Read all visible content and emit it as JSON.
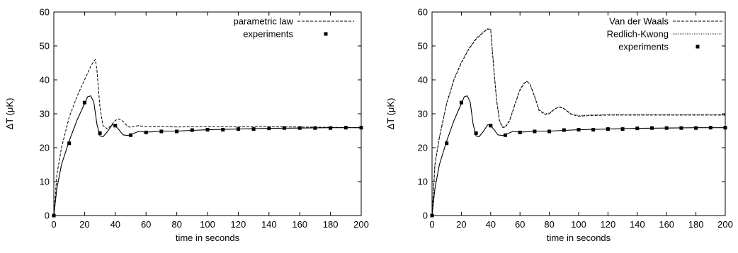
{
  "chart_data": [
    {
      "type": "line",
      "title": "",
      "xlabel": "time in seconds",
      "ylabel": "ΔT  (μK)",
      "xlim": [
        0,
        200
      ],
      "ylim": [
        0,
        60
      ],
      "xticks": [
        "0",
        "20",
        "40",
        "60",
        "80",
        "100",
        "120",
        "140",
        "160",
        "180",
        "200"
      ],
      "yticks": [
        "0",
        "10",
        "20",
        "30",
        "40",
        "50",
        "60"
      ],
      "legend_position": "top-right",
      "series": [
        {
          "name": "",
          "style": "solid",
          "x": [
            0,
            2,
            5,
            10,
            15,
            20,
            22,
            24,
            26,
            28,
            30,
            32,
            35,
            38,
            40,
            42,
            45,
            48,
            50,
            55,
            60,
            65,
            70,
            80,
            90,
            100,
            120,
            140,
            160,
            180,
            200
          ],
          "y": [
            0,
            8,
            15,
            22,
            28,
            33,
            35,
            35.3,
            33.5,
            27,
            23.5,
            23.2,
            24.8,
            26.8,
            26.5,
            25.5,
            23.8,
            23.6,
            23.8,
            24.8,
            24.6,
            24.7,
            24.9,
            24.9,
            25.1,
            25.3,
            25.5,
            25.7,
            25.8,
            25.9,
            25.9
          ]
        },
        {
          "name": "parametric law",
          "style": "dashed",
          "x": [
            0,
            2,
            5,
            10,
            15,
            20,
            24,
            26,
            27,
            28,
            30,
            32,
            35,
            38,
            40,
            42,
            45,
            48,
            50,
            55,
            60,
            70,
            80,
            100,
            120,
            140,
            160,
            180,
            200
          ],
          "y": [
            0,
            12,
            20,
            29,
            35,
            40,
            44,
            45.5,
            46,
            43,
            32,
            26.5,
            25.5,
            27,
            28,
            28.5,
            27.8,
            26.3,
            26,
            26.5,
            26.2,
            26.3,
            26.1,
            26.2,
            26.2,
            26.2,
            26.1,
            26,
            25.9
          ]
        },
        {
          "name": "experiments",
          "style": "points",
          "x": [
            0,
            10,
            20,
            30,
            40,
            50,
            60,
            70,
            80,
            90,
            100,
            110,
            120,
            130,
            140,
            150,
            160,
            170,
            180,
            190,
            200
          ],
          "y": [
            0,
            21.3,
            33.3,
            24.3,
            26.5,
            23.7,
            24.5,
            24.8,
            24.8,
            25.2,
            25.3,
            25.3,
            25.5,
            25.5,
            25.7,
            25.8,
            25.8,
            25.8,
            25.8,
            25.9,
            25.9
          ]
        }
      ]
    },
    {
      "type": "line",
      "title": "",
      "xlabel": "time in seconds",
      "ylabel": "ΔT  (μK)",
      "xlim": [
        0,
        200
      ],
      "ylim": [
        0,
        60
      ],
      "xticks": [
        "0",
        "20",
        "40",
        "60",
        "80",
        "100",
        "120",
        "140",
        "160",
        "180",
        "200"
      ],
      "yticks": [
        "0",
        "10",
        "20",
        "30",
        "40",
        "50",
        "60"
      ],
      "legend_position": "top-right",
      "series": [
        {
          "name": "",
          "style": "solid",
          "x": [
            0,
            2,
            5,
            10,
            15,
            20,
            22,
            24,
            26,
            28,
            30,
            32,
            35,
            38,
            40,
            42,
            45,
            48,
            50,
            55,
            60,
            65,
            70,
            80,
            90,
            100,
            120,
            140,
            160,
            180,
            200
          ],
          "y": [
            0,
            8,
            15,
            22,
            28,
            33,
            35,
            35.3,
            33.5,
            27,
            23.5,
            23.2,
            24.8,
            26.8,
            26.5,
            25.5,
            23.8,
            23.6,
            23.8,
            24.8,
            24.6,
            24.7,
            24.9,
            24.9,
            25.1,
            25.3,
            25.5,
            25.7,
            25.8,
            25.9,
            25.9
          ]
        },
        {
          "name": "Van der Waals",
          "style": "dashed",
          "x": [
            0,
            2,
            5,
            10,
            15,
            20,
            25,
            30,
            35,
            38,
            40,
            42,
            44,
            46,
            48,
            50,
            53,
            56,
            60,
            63,
            65,
            67,
            70,
            73,
            77,
            80,
            84,
            87,
            90,
            95,
            100,
            110,
            120,
            140,
            160,
            180,
            200
          ],
          "y": [
            0,
            15,
            23,
            33,
            40,
            45,
            49,
            52,
            54,
            55,
            54.8,
            44,
            34,
            28,
            26,
            26,
            28,
            32,
            37,
            39,
            39.5,
            38.5,
            35,
            31,
            29.8,
            30,
            31.5,
            32,
            31.5,
            29.8,
            29.3,
            29.5,
            29.6,
            29.6,
            29.6,
            29.6,
            29.6
          ]
        },
        {
          "name": "Redlich-Kwong",
          "style": "dotted",
          "x": [
            0,
            2,
            5,
            10,
            15,
            20,
            25,
            30,
            35,
            38,
            40,
            42,
            44,
            46,
            48,
            50,
            53,
            56,
            60,
            63,
            65,
            67,
            70,
            73,
            77,
            80,
            84,
            87,
            90,
            95,
            100,
            110,
            120,
            140,
            160,
            180,
            200
          ],
          "y": [
            0,
            15.2,
            23.2,
            33.2,
            40.2,
            45.2,
            49.2,
            52.2,
            54.2,
            55.1,
            54.9,
            44.2,
            34.2,
            28.2,
            26.2,
            26.2,
            28.2,
            32.2,
            37.2,
            39.2,
            39.6,
            38.6,
            35.2,
            31.2,
            30,
            30.2,
            31.6,
            32.1,
            31.6,
            30,
            29.5,
            29.7,
            29.8,
            29.8,
            29.8,
            29.8,
            29.8
          ]
        },
        {
          "name": "experiments",
          "style": "points",
          "x": [
            0,
            10,
            20,
            30,
            40,
            50,
            60,
            70,
            80,
            90,
            100,
            110,
            120,
            130,
            140,
            150,
            160,
            170,
            180,
            190,
            200
          ],
          "y": [
            0,
            21.3,
            33.3,
            24.3,
            26.5,
            23.7,
            24.5,
            24.8,
            24.8,
            25.2,
            25.3,
            25.3,
            25.5,
            25.5,
            25.7,
            25.8,
            25.8,
            25.8,
            25.8,
            25.9,
            25.9
          ]
        }
      ]
    }
  ]
}
